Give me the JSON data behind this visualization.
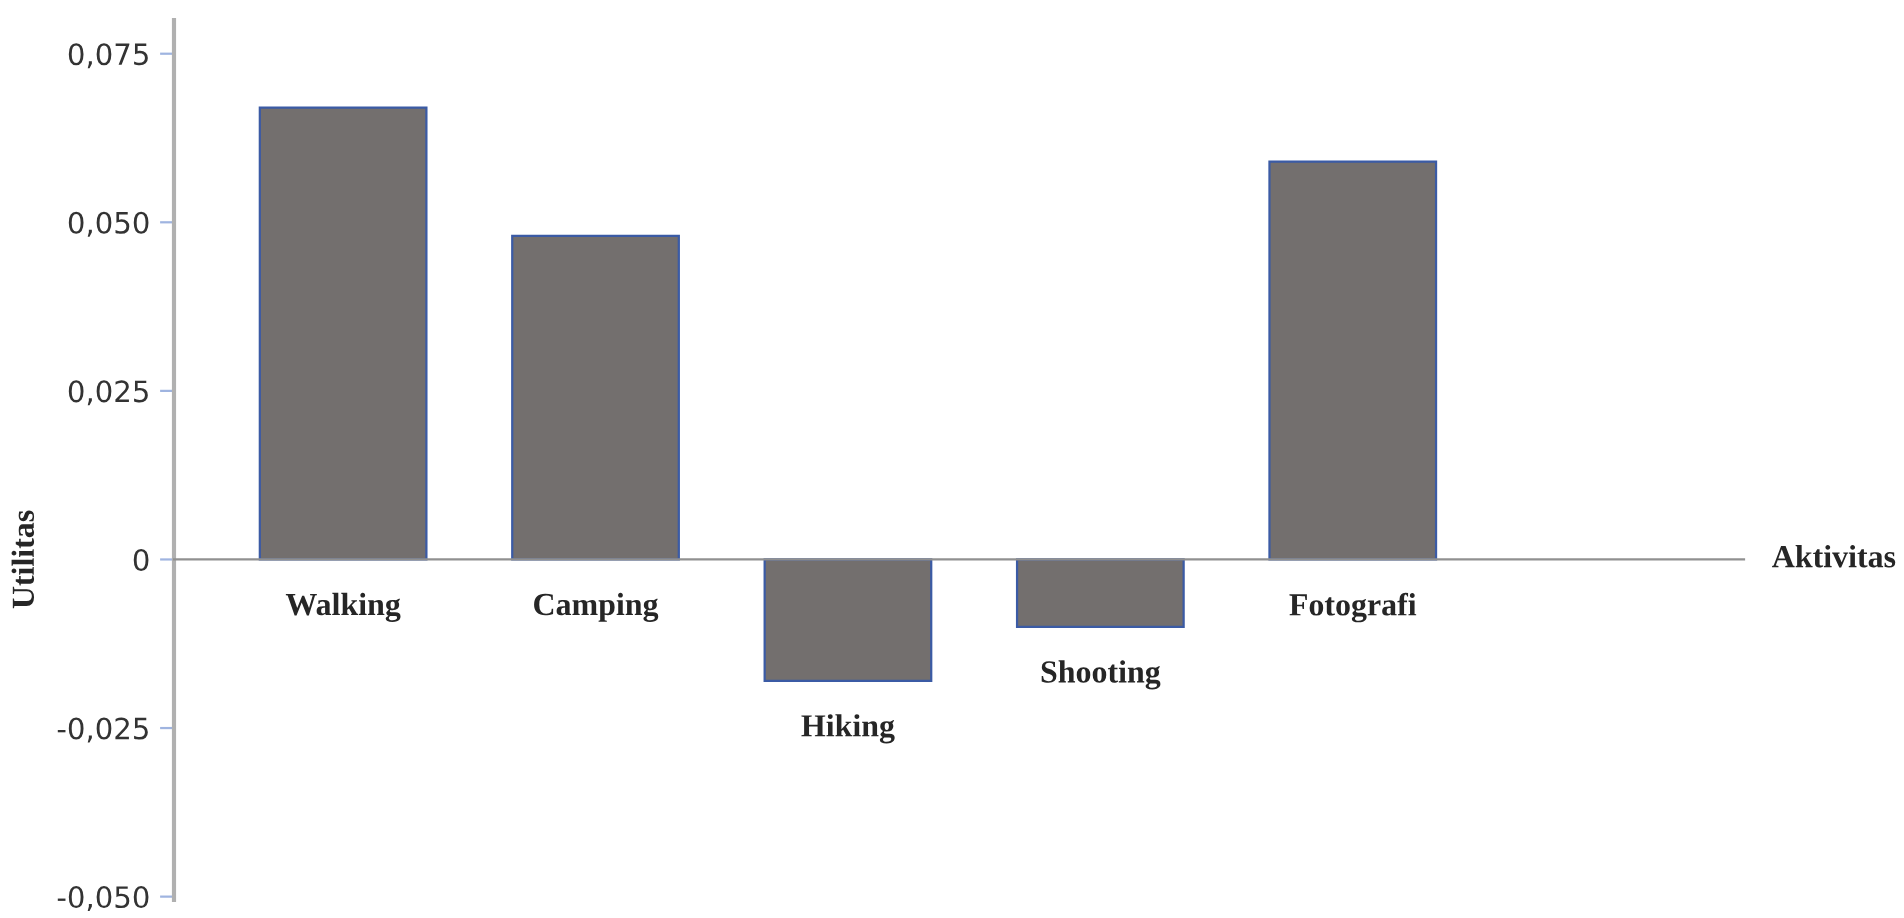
{
  "chart_data": {
    "type": "bar",
    "annotations": [
      "Aktivitas"
    ],
    "ylabel": "Utilitas",
    "categories": [
      "Walking",
      "Camping",
      "Hiking",
      "Shooting",
      "Fotografi"
    ],
    "values": [
      0.067,
      0.048,
      -0.018,
      -0.01,
      0.059
    ],
    "color": "#736f6e",
    "ylim": [
      -0.0505,
      0.08
    ],
    "yticks": [
      {
        "value": -0.05,
        "label": "-0,050"
      },
      {
        "value": -0.025,
        "label": "-0,025"
      },
      0,
      {
        "value": 0.025,
        "label": "0,025"
      },
      {
        "value": 0.05,
        "label": "0,050"
      },
      {
        "value": 0.075,
        "label": "0,075"
      }
    ],
    "grid": false,
    "legend": false
  }
}
